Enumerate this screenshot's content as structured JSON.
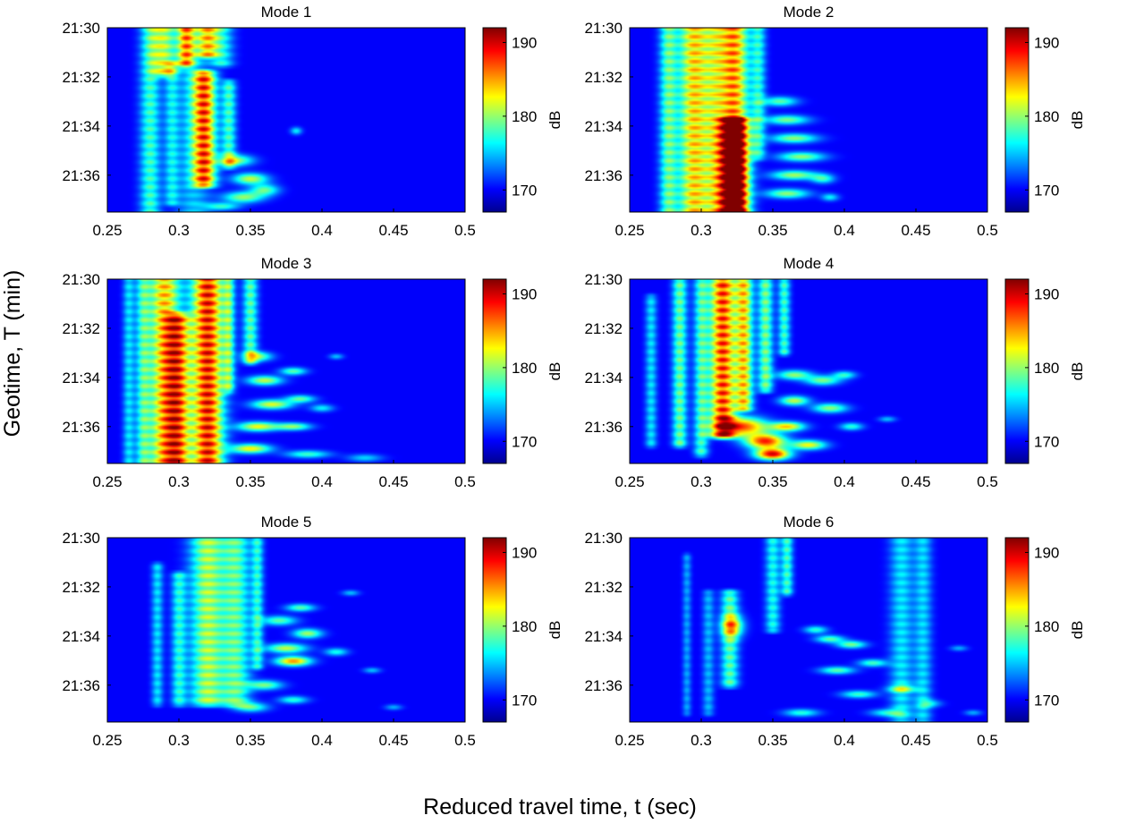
{
  "figure": {
    "ylabel": "Geotime, T (min)",
    "xlabel": "Reduced travel time, t (sec)"
  },
  "colormap": {
    "name": "jet",
    "stops": [
      "#00008f",
      "#0000ff",
      "#0080ff",
      "#00ffff",
      "#80ff80",
      "#ffff00",
      "#ff8000",
      "#ff0000",
      "#800000"
    ]
  },
  "chart_data": [
    {
      "type": "heatmap",
      "title": "Mode 1",
      "xlim": [
        0.25,
        0.5
      ],
      "xticks": [
        "0.25",
        "0.3",
        "0.35",
        "0.4",
        "0.45",
        "0.5"
      ],
      "yticks": [
        "21:30",
        "21:32",
        "21:34",
        "21:36"
      ],
      "colorbar": {
        "label": "dB",
        "ticks": [
          "190",
          "180",
          "170"
        ],
        "range": [
          167,
          192
        ]
      },
      "features": [
        {
          "t": 0.28,
          "T0": 0.0,
          "T1": 1.0,
          "w": 0.007,
          "v": 0.35
        },
        {
          "t": 0.29,
          "T0": 0.0,
          "T1": 0.25,
          "w": 0.008,
          "v": 0.45
        },
        {
          "t": 0.305,
          "T0": 0.0,
          "T1": 0.2,
          "w": 0.006,
          "v": 0.55
        },
        {
          "t": 0.32,
          "T0": 0.0,
          "T1": 0.15,
          "w": 0.007,
          "v": 0.5
        },
        {
          "t": 0.295,
          "T0": 0.2,
          "T1": 0.95,
          "w": 0.005,
          "v": 0.25
        },
        {
          "t": 0.318,
          "T0": 0.25,
          "T1": 0.85,
          "w": 0.008,
          "v": 0.68
        },
        {
          "t": 0.335,
          "T0": 0.3,
          "T1": 0.75,
          "w": 0.005,
          "v": 0.35
        },
        {
          "t": 0.31,
          "T0": 0.0,
          "T1": 1.0,
          "w": 0.012,
          "v": 0.22
        },
        {
          "t": 0.33,
          "T0": 0.0,
          "T1": 0.2,
          "w": 0.008,
          "v": 0.3
        }
      ],
      "blobs": [
        {
          "t": 0.34,
          "T": 0.72,
          "rt": 0.012,
          "rT": 0.03,
          "v": 0.4
        },
        {
          "t": 0.35,
          "T": 0.82,
          "rt": 0.012,
          "rT": 0.03,
          "v": 0.45
        },
        {
          "t": 0.345,
          "T": 0.92,
          "rt": 0.014,
          "rT": 0.03,
          "v": 0.4
        },
        {
          "t": 0.36,
          "T": 0.88,
          "rt": 0.01,
          "rT": 0.03,
          "v": 0.35
        },
        {
          "t": 0.33,
          "T": 0.97,
          "rt": 0.012,
          "rT": 0.02,
          "v": 0.3
        },
        {
          "t": 0.382,
          "T": 0.56,
          "rt": 0.004,
          "rT": 0.02,
          "v": 0.25
        }
      ]
    },
    {
      "type": "heatmap",
      "title": "Mode 2",
      "xlim": [
        0.25,
        0.5
      ],
      "xticks": [
        "0.25",
        "0.3",
        "0.35",
        "0.4",
        "0.45",
        "0.5"
      ],
      "yticks": [
        "21:30",
        "21:32",
        "21:34",
        "21:36"
      ],
      "colorbar": {
        "label": "dB",
        "ticks": [
          "190",
          "180",
          "170"
        ],
        "range": [
          167,
          192
        ]
      },
      "features": [
        {
          "t": 0.277,
          "T0": 0.0,
          "T1": 1.0,
          "w": 0.006,
          "v": 0.38
        },
        {
          "t": 0.295,
          "T0": 0.0,
          "T1": 1.0,
          "w": 0.011,
          "v": 0.62
        },
        {
          "t": 0.323,
          "T0": 0.0,
          "T1": 1.0,
          "w": 0.01,
          "v": 0.7
        },
        {
          "t": 0.323,
          "T0": 0.5,
          "T1": 1.0,
          "w": 0.009,
          "v": 0.82
        },
        {
          "t": 0.34,
          "T0": 0.0,
          "T1": 0.7,
          "w": 0.005,
          "v": 0.3
        },
        {
          "t": 0.31,
          "T0": 0.0,
          "T1": 1.0,
          "w": 0.008,
          "v": 0.35
        }
      ],
      "blobs": [
        {
          "t": 0.355,
          "T": 0.4,
          "rt": 0.012,
          "rT": 0.025,
          "v": 0.35
        },
        {
          "t": 0.36,
          "T": 0.5,
          "rt": 0.015,
          "rT": 0.025,
          "v": 0.38
        },
        {
          "t": 0.365,
          "T": 0.6,
          "rt": 0.016,
          "rT": 0.025,
          "v": 0.4
        },
        {
          "t": 0.37,
          "T": 0.7,
          "rt": 0.016,
          "rT": 0.025,
          "v": 0.4
        },
        {
          "t": 0.365,
          "T": 0.8,
          "rt": 0.016,
          "rT": 0.025,
          "v": 0.42
        },
        {
          "t": 0.36,
          "T": 0.9,
          "rt": 0.015,
          "rT": 0.025,
          "v": 0.4
        },
        {
          "t": 0.385,
          "T": 0.82,
          "rt": 0.008,
          "rT": 0.025,
          "v": 0.3
        },
        {
          "t": 0.39,
          "T": 0.92,
          "rt": 0.006,
          "rT": 0.02,
          "v": 0.25
        }
      ]
    },
    {
      "type": "heatmap",
      "title": "Mode 3",
      "xlim": [
        0.25,
        0.5
      ],
      "xticks": [
        "0.25",
        "0.3",
        "0.35",
        "0.4",
        "0.45",
        "0.5"
      ],
      "yticks": [
        "21:30",
        "21:32",
        "21:34",
        "21:36"
      ],
      "colorbar": {
        "label": "dB",
        "ticks": [
          "190",
          "180",
          "170"
        ],
        "range": [
          167,
          192
        ]
      },
      "features": [
        {
          "t": 0.265,
          "T0": 0.0,
          "T1": 1.0,
          "w": 0.004,
          "v": 0.25
        },
        {
          "t": 0.275,
          "T0": 0.0,
          "T1": 1.0,
          "w": 0.005,
          "v": 0.32
        },
        {
          "t": 0.29,
          "T0": 0.0,
          "T1": 1.0,
          "w": 0.011,
          "v": 0.65
        },
        {
          "t": 0.3,
          "T0": 0.2,
          "T1": 1.0,
          "w": 0.008,
          "v": 0.55
        },
        {
          "t": 0.32,
          "T0": 0.0,
          "T1": 1.0,
          "w": 0.011,
          "v": 0.85
        },
        {
          "t": 0.335,
          "T0": 0.0,
          "T1": 0.6,
          "w": 0.004,
          "v": 0.35
        },
        {
          "t": 0.35,
          "T0": 0.0,
          "T1": 0.45,
          "w": 0.005,
          "v": 0.38
        }
      ],
      "blobs": [
        {
          "t": 0.355,
          "T": 0.42,
          "rt": 0.01,
          "rT": 0.025,
          "v": 0.4
        },
        {
          "t": 0.36,
          "T": 0.55,
          "rt": 0.012,
          "rT": 0.025,
          "v": 0.45
        },
        {
          "t": 0.365,
          "T": 0.68,
          "rt": 0.014,
          "rT": 0.025,
          "v": 0.48
        },
        {
          "t": 0.355,
          "T": 0.8,
          "rt": 0.014,
          "rT": 0.025,
          "v": 0.5
        },
        {
          "t": 0.35,
          "T": 0.92,
          "rt": 0.014,
          "rT": 0.025,
          "v": 0.52
        },
        {
          "t": 0.38,
          "T": 0.5,
          "rt": 0.009,
          "rT": 0.02,
          "v": 0.35
        },
        {
          "t": 0.385,
          "T": 0.65,
          "rt": 0.01,
          "rT": 0.02,
          "v": 0.35
        },
        {
          "t": 0.38,
          "T": 0.8,
          "rt": 0.012,
          "rT": 0.02,
          "v": 0.4
        },
        {
          "t": 0.39,
          "T": 0.95,
          "rt": 0.015,
          "rT": 0.02,
          "v": 0.32
        },
        {
          "t": 0.4,
          "T": 0.7,
          "rt": 0.008,
          "rT": 0.02,
          "v": 0.25
        },
        {
          "t": 0.41,
          "T": 0.42,
          "rt": 0.005,
          "rT": 0.015,
          "v": 0.2
        },
        {
          "t": 0.43,
          "T": 0.97,
          "rt": 0.012,
          "rT": 0.02,
          "v": 0.22
        }
      ]
    },
    {
      "type": "heatmap",
      "title": "Mode 4",
      "xlim": [
        0.25,
        0.5
      ],
      "xticks": [
        "0.25",
        "0.3",
        "0.35",
        "0.4",
        "0.45",
        "0.5"
      ],
      "yticks": [
        "21:30",
        "21:32",
        "21:34",
        "21:36"
      ],
      "colorbar": {
        "label": "dB",
        "ticks": [
          "190",
          "180",
          "170"
        ],
        "range": [
          167,
          192
        ]
      },
      "features": [
        {
          "t": 0.265,
          "T0": 0.1,
          "T1": 0.9,
          "w": 0.004,
          "v": 0.25
        },
        {
          "t": 0.285,
          "T0": 0.0,
          "T1": 0.9,
          "w": 0.005,
          "v": 0.4
        },
        {
          "t": 0.3,
          "T0": 0.0,
          "T1": 0.95,
          "w": 0.005,
          "v": 0.35
        },
        {
          "t": 0.315,
          "T0": 0.0,
          "T1": 0.85,
          "w": 0.009,
          "v": 0.8
        },
        {
          "t": 0.33,
          "T0": 0.0,
          "T1": 0.7,
          "w": 0.006,
          "v": 0.6
        },
        {
          "t": 0.345,
          "T0": 0.0,
          "T1": 0.6,
          "w": 0.005,
          "v": 0.42
        },
        {
          "t": 0.358,
          "T0": 0.0,
          "T1": 0.4,
          "w": 0.004,
          "v": 0.35
        }
      ],
      "blobs": [
        {
          "t": 0.33,
          "T": 0.8,
          "rt": 0.016,
          "rT": 0.05,
          "v": 0.65
        },
        {
          "t": 0.345,
          "T": 0.88,
          "rt": 0.014,
          "rT": 0.04,
          "v": 0.72
        },
        {
          "t": 0.35,
          "T": 0.95,
          "rt": 0.012,
          "rT": 0.03,
          "v": 0.78
        },
        {
          "t": 0.36,
          "T": 0.8,
          "rt": 0.012,
          "rT": 0.025,
          "v": 0.55
        },
        {
          "t": 0.365,
          "T": 0.66,
          "rt": 0.01,
          "rT": 0.025,
          "v": 0.45
        },
        {
          "t": 0.365,
          "T": 0.52,
          "rt": 0.012,
          "rT": 0.025,
          "v": 0.4
        },
        {
          "t": 0.375,
          "T": 0.9,
          "rt": 0.012,
          "rT": 0.025,
          "v": 0.5
        },
        {
          "t": 0.385,
          "T": 0.55,
          "rt": 0.012,
          "rT": 0.025,
          "v": 0.38
        },
        {
          "t": 0.39,
          "T": 0.7,
          "rt": 0.012,
          "rT": 0.025,
          "v": 0.4
        },
        {
          "t": 0.4,
          "T": 0.52,
          "rt": 0.008,
          "rT": 0.02,
          "v": 0.3
        },
        {
          "t": 0.405,
          "T": 0.8,
          "rt": 0.008,
          "rT": 0.02,
          "v": 0.3
        },
        {
          "t": 0.43,
          "T": 0.76,
          "rt": 0.006,
          "rT": 0.015,
          "v": 0.2
        }
      ]
    },
    {
      "type": "heatmap",
      "title": "Mode 5",
      "xlim": [
        0.25,
        0.5
      ],
      "xticks": [
        "0.25",
        "0.3",
        "0.35",
        "0.4",
        "0.45",
        "0.5"
      ],
      "yticks": [
        "21:30",
        "21:32",
        "21:34",
        "21:36"
      ],
      "colorbar": {
        "label": "dB",
        "ticks": [
          "190",
          "180",
          "170"
        ],
        "range": [
          167,
          192
        ]
      },
      "features": [
        {
          "t": 0.285,
          "T0": 0.15,
          "T1": 0.9,
          "w": 0.004,
          "v": 0.25
        },
        {
          "t": 0.3,
          "T0": 0.2,
          "T1": 0.9,
          "w": 0.005,
          "v": 0.3
        },
        {
          "t": 0.32,
          "T0": 0.0,
          "T1": 0.9,
          "w": 0.012,
          "v": 0.48
        },
        {
          "t": 0.34,
          "T0": 0.0,
          "T1": 0.9,
          "w": 0.01,
          "v": 0.38
        },
        {
          "t": 0.355,
          "T0": 0.0,
          "T1": 0.7,
          "w": 0.004,
          "v": 0.3
        }
      ],
      "blobs": [
        {
          "t": 0.37,
          "T": 0.45,
          "rt": 0.012,
          "rT": 0.025,
          "v": 0.35
        },
        {
          "t": 0.375,
          "T": 0.6,
          "rt": 0.014,
          "rT": 0.025,
          "v": 0.45
        },
        {
          "t": 0.38,
          "T": 0.67,
          "rt": 0.012,
          "rT": 0.025,
          "v": 0.62
        },
        {
          "t": 0.39,
          "T": 0.52,
          "rt": 0.01,
          "rT": 0.025,
          "v": 0.42
        },
        {
          "t": 0.385,
          "T": 0.38,
          "rt": 0.01,
          "rT": 0.02,
          "v": 0.35
        },
        {
          "t": 0.36,
          "T": 0.8,
          "rt": 0.012,
          "rT": 0.025,
          "v": 0.38
        },
        {
          "t": 0.35,
          "T": 0.92,
          "rt": 0.012,
          "rT": 0.025,
          "v": 0.35
        },
        {
          "t": 0.38,
          "T": 0.88,
          "rt": 0.01,
          "rT": 0.02,
          "v": 0.3
        },
        {
          "t": 0.41,
          "T": 0.62,
          "rt": 0.008,
          "rT": 0.02,
          "v": 0.28
        },
        {
          "t": 0.42,
          "T": 0.3,
          "rt": 0.006,
          "rT": 0.015,
          "v": 0.2
        },
        {
          "t": 0.435,
          "T": 0.72,
          "rt": 0.006,
          "rT": 0.015,
          "v": 0.2
        },
        {
          "t": 0.45,
          "T": 0.92,
          "rt": 0.006,
          "rT": 0.015,
          "v": 0.18
        }
      ]
    },
    {
      "type": "heatmap",
      "title": "Mode 6",
      "xlim": [
        0.25,
        0.5
      ],
      "xticks": [
        "0.25",
        "0.3",
        "0.35",
        "0.4",
        "0.45",
        "0.5"
      ],
      "yticks": [
        "21:30",
        "21:32",
        "21:34",
        "21:36"
      ],
      "colorbar": {
        "label": "dB",
        "ticks": [
          "190",
          "180",
          "170"
        ],
        "range": [
          167,
          192
        ]
      },
      "features": [
        {
          "t": 0.29,
          "T0": 0.1,
          "T1": 0.95,
          "w": 0.003,
          "v": 0.18
        },
        {
          "t": 0.305,
          "T0": 0.3,
          "T1": 0.95,
          "w": 0.004,
          "v": 0.2
        },
        {
          "t": 0.32,
          "T0": 0.3,
          "T1": 0.8,
          "w": 0.006,
          "v": 0.38
        },
        {
          "t": 0.35,
          "T0": 0.0,
          "T1": 0.5,
          "w": 0.005,
          "v": 0.3
        },
        {
          "t": 0.36,
          "T0": 0.0,
          "T1": 0.3,
          "w": 0.004,
          "v": 0.35
        },
        {
          "t": 0.44,
          "T0": 0.0,
          "T1": 1.0,
          "w": 0.008,
          "v": 0.26
        },
        {
          "t": 0.455,
          "T0": 0.0,
          "T1": 1.0,
          "w": 0.006,
          "v": 0.24
        }
      ],
      "blobs": [
        {
          "t": 0.322,
          "T": 0.48,
          "rt": 0.008,
          "rT": 0.06,
          "v": 0.4
        },
        {
          "t": 0.38,
          "T": 0.5,
          "rt": 0.008,
          "rT": 0.02,
          "v": 0.3
        },
        {
          "t": 0.39,
          "T": 0.55,
          "rt": 0.01,
          "rT": 0.02,
          "v": 0.35
        },
        {
          "t": 0.405,
          "T": 0.58,
          "rt": 0.01,
          "rT": 0.02,
          "v": 0.38
        },
        {
          "t": 0.395,
          "T": 0.72,
          "rt": 0.012,
          "rT": 0.02,
          "v": 0.35
        },
        {
          "t": 0.42,
          "T": 0.68,
          "rt": 0.01,
          "rT": 0.02,
          "v": 0.33
        },
        {
          "t": 0.41,
          "T": 0.85,
          "rt": 0.012,
          "rT": 0.02,
          "v": 0.32
        },
        {
          "t": 0.44,
          "T": 0.82,
          "rt": 0.01,
          "rT": 0.02,
          "v": 0.3
        },
        {
          "t": 0.37,
          "T": 0.95,
          "rt": 0.012,
          "rT": 0.02,
          "v": 0.3
        },
        {
          "t": 0.43,
          "T": 0.95,
          "rt": 0.012,
          "rT": 0.02,
          "v": 0.28
        },
        {
          "t": 0.46,
          "T": 0.9,
          "rt": 0.008,
          "rT": 0.02,
          "v": 0.22
        },
        {
          "t": 0.48,
          "T": 0.6,
          "rt": 0.006,
          "rT": 0.015,
          "v": 0.18
        },
        {
          "t": 0.49,
          "T": 0.95,
          "rt": 0.006,
          "rT": 0.015,
          "v": 0.18
        }
      ]
    }
  ]
}
